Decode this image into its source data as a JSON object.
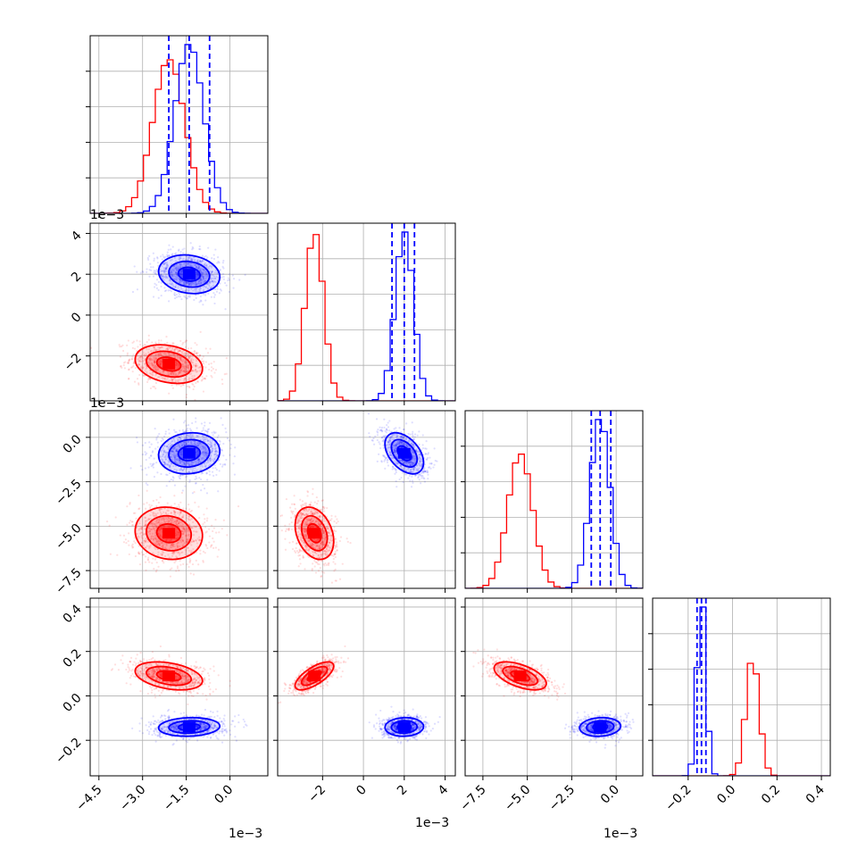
{
  "chart_data": {
    "type": "corner-plot",
    "title": "",
    "series": [
      {
        "name": "",
        "color": "#ff0000",
        "mean": [
          -0.0021,
          -0.0024,
          -0.0054,
          0.09
        ],
        "std": [
          0.00055,
          0.00045,
          0.0007,
          0.03
        ],
        "corr": [
          [
            1,
            -0.25,
            -0.1,
            -0.35
          ],
          [
            -0.25,
            1,
            -0.3,
            0.7
          ],
          [
            -0.1,
            -0.3,
            1,
            -0.55
          ],
          [
            -0.35,
            0.7,
            -0.55,
            1
          ]
        ]
      },
      {
        "name": "",
        "color": "#0000ff",
        "mean": [
          -0.0014,
          0.002,
          -0.0009,
          -0.14
        ],
        "std": [
          0.0005,
          0.00045,
          0.00055,
          0.02
        ],
        "corr": [
          [
            1,
            -0.15,
            0.1,
            0.1
          ],
          [
            -0.15,
            1,
            -0.45,
            0.05
          ],
          [
            0.1,
            -0.45,
            1,
            0.1
          ],
          [
            0.1,
            0.05,
            0.1,
            1
          ]
        ]
      }
    ],
    "quantile_color": "#0000ff",
    "quantiles": [
      [
        -0.0021,
        -0.0014,
        -0.0007
      ],
      [
        0.0014,
        0.002,
        0.0025
      ],
      [
        -0.0014,
        -0.0009,
        -0.0003
      ],
      [
        -0.16,
        -0.14,
        -0.12
      ]
    ],
    "axis_ranges": [
      [
        -0.0048,
        0.0013
      ],
      [
        -0.0042,
        0.0045
      ],
      [
        -0.0085,
        0.0015
      ],
      [
        -0.36,
        0.44
      ]
    ],
    "diag_xticks": [
      [
        {
          "v": -0.0045,
          "label": "−4.5"
        },
        {
          "v": -0.003,
          "label": "−3.0"
        },
        {
          "v": -0.0015,
          "label": "−1.5"
        },
        {
          "v": 0.0,
          "label": "0.0"
        }
      ],
      [
        {
          "v": -0.002,
          "label": "−2"
        },
        {
          "v": 0.0,
          "label": "0"
        },
        {
          "v": 0.002,
          "label": "2"
        },
        {
          "v": 0.004,
          "label": "4"
        }
      ],
      [
        {
          "v": -0.0075,
          "label": "−7.5"
        },
        {
          "v": -0.005,
          "label": "−5.0"
        },
        {
          "v": -0.0025,
          "label": "−2.5"
        },
        {
          "v": 0.0,
          "label": "0.0"
        }
      ],
      [
        {
          "v": -0.2,
          "label": "−0.2"
        },
        {
          "v": 0.0,
          "label": "0.0"
        },
        {
          "v": 0.2,
          "label": "0.2"
        },
        {
          "v": 0.4,
          "label": "0.4"
        }
      ]
    ],
    "row_yticks": [
      null,
      [
        {
          "v": -0.002,
          "label": "−2"
        },
        {
          "v": 0.0,
          "label": "0"
        },
        {
          "v": 0.002,
          "label": "2"
        },
        {
          "v": 0.004,
          "label": "4"
        }
      ],
      [
        {
          "v": -0.0075,
          "label": "−7.5"
        },
        {
          "v": -0.005,
          "label": "−5.0"
        },
        {
          "v": -0.0025,
          "label": "−2.5"
        },
        {
          "v": 0.0,
          "label": "0.0"
        }
      ],
      [
        {
          "v": -0.2,
          "label": "−0.2"
        },
        {
          "v": 0.0,
          "label": "0.0"
        },
        {
          "v": 0.2,
          "label": "0.2"
        },
        {
          "v": 0.4,
          "label": "0.4"
        }
      ]
    ],
    "scale_labels": {
      "bottom_col_0": "1e−3",
      "bottom_col_1": "1e−3",
      "bottom_col_2": "1e−3",
      "left_row_1": "1e−3",
      "left_row_2": "1e−3"
    },
    "grid": true,
    "legend": "none"
  }
}
